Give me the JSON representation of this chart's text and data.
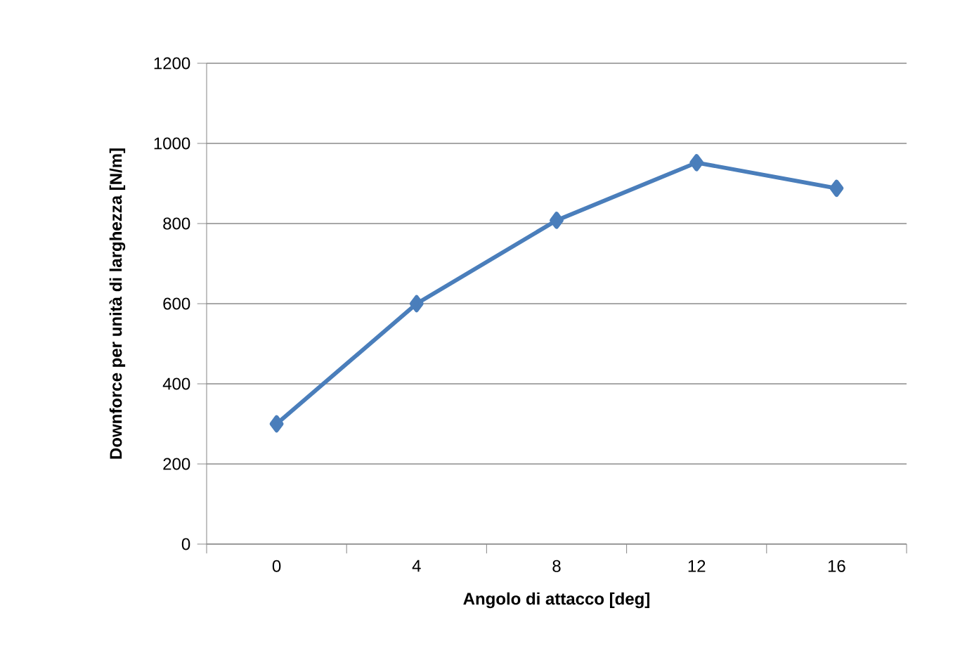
{
  "chart_data": {
    "type": "line",
    "xlabel": "Angolo di attacco [deg]",
    "ylabel": "Downforce per unità di larghezza  [N/m]",
    "categories": [
      "0",
      "4",
      "8",
      "12",
      "16"
    ],
    "series": [
      {
        "color": "#4a7ebb",
        "values": [
          300,
          600,
          808,
          952,
          888
        ]
      }
    ],
    "ylim": [
      0,
      1200
    ],
    "yticks": [
      0,
      200,
      400,
      600,
      800,
      1000,
      1200
    ],
    "grid": "y",
    "marker": "diamond",
    "line_style": "solid"
  }
}
